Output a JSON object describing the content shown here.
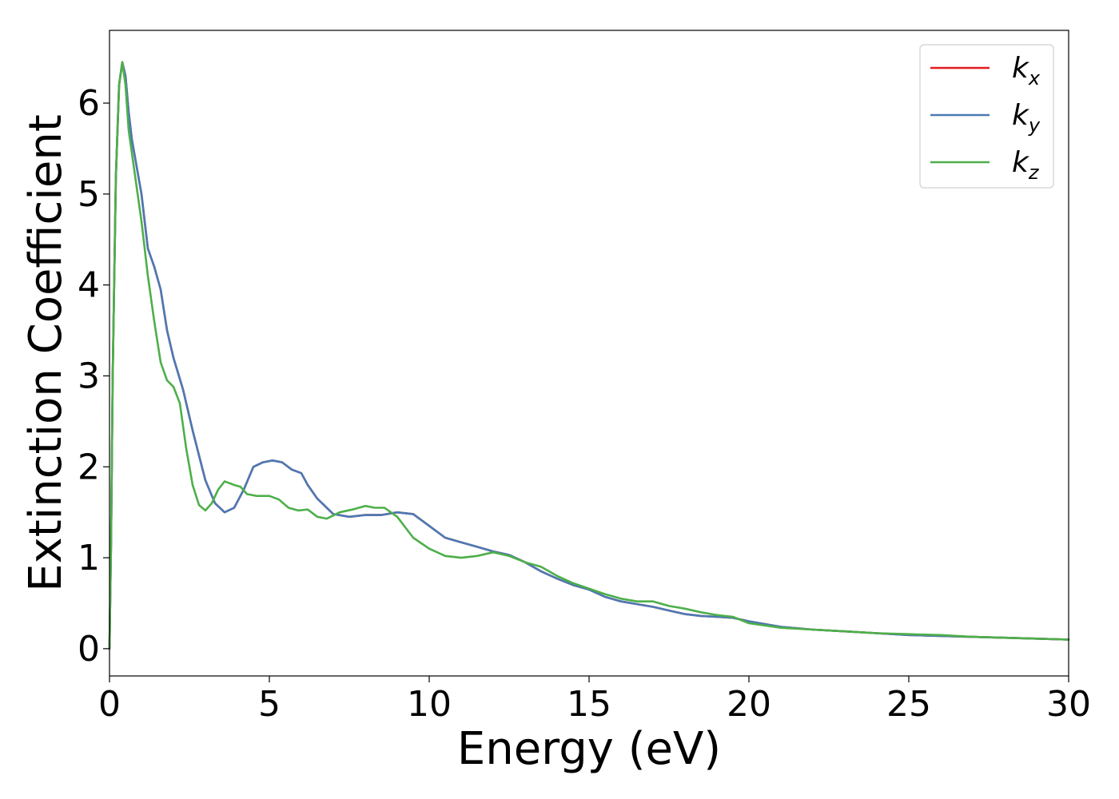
{
  "chart_data": {
    "type": "line",
    "title": "",
    "xlabel": "Energy (eV)",
    "ylabel": "Extinction Coefficient",
    "xlim": [
      0,
      30
    ],
    "ylim": [
      -0.3,
      6.8
    ],
    "xticks": [
      0,
      5,
      10,
      15,
      20,
      25,
      30
    ],
    "xtick_labels": [
      "0",
      "5",
      "10",
      "15",
      "20",
      "25",
      "30"
    ],
    "yticks": [
      0,
      1,
      2,
      3,
      4,
      5,
      6
    ],
    "ytick_labels": [
      "0",
      "1",
      "2",
      "3",
      "4",
      "5",
      "6"
    ],
    "grid": false,
    "legend_position": "top-right",
    "series": [
      {
        "name": "k",
        "subscript": "x",
        "color": "#e41a1c",
        "x": [
          0,
          0.05,
          0.1,
          0.2,
          0.3,
          0.4,
          0.5,
          0.6,
          0.7,
          0.8,
          1.0,
          1.2,
          1.4,
          1.6,
          1.8,
          2.0,
          2.3,
          2.6,
          3.0,
          3.3,
          3.6,
          3.9,
          4.2,
          4.5,
          4.8,
          5.1,
          5.4,
          5.7,
          6.0,
          6.2,
          6.5,
          7.0,
          7.5,
          8.0,
          8.5,
          9.0,
          9.5,
          10.0,
          10.5,
          11.0,
          11.5,
          12.0,
          12.5,
          13.0,
          13.5,
          14.0,
          14.5,
          15.0,
          15.5,
          16.0,
          16.5,
          17.0,
          17.5,
          18.0,
          18.5,
          19.0,
          19.5,
          20.0,
          21.0,
          22.0,
          23.0,
          24.0,
          25.0,
          26.0,
          27.0,
          28.0,
          29.0,
          30.0
        ],
        "y": [
          0,
          1.2,
          3.0,
          5.2,
          6.2,
          6.45,
          6.3,
          5.9,
          5.6,
          5.4,
          5.0,
          4.4,
          4.2,
          3.95,
          3.5,
          3.2,
          2.85,
          2.4,
          1.85,
          1.6,
          1.5,
          1.55,
          1.75,
          2.0,
          2.05,
          2.07,
          2.05,
          1.97,
          1.93,
          1.8,
          1.65,
          1.48,
          1.45,
          1.47,
          1.47,
          1.5,
          1.48,
          1.35,
          1.22,
          1.17,
          1.12,
          1.07,
          1.03,
          0.95,
          0.85,
          0.77,
          0.7,
          0.65,
          0.57,
          0.52,
          0.49,
          0.46,
          0.42,
          0.38,
          0.36,
          0.35,
          0.34,
          0.3,
          0.24,
          0.21,
          0.19,
          0.17,
          0.15,
          0.14,
          0.13,
          0.12,
          0.11,
          0.1
        ]
      },
      {
        "name": "k",
        "subscript": "y",
        "color": "#4a7ab5",
        "x": [
          0,
          0.05,
          0.1,
          0.2,
          0.3,
          0.4,
          0.5,
          0.6,
          0.7,
          0.8,
          1.0,
          1.2,
          1.4,
          1.6,
          1.8,
          2.0,
          2.3,
          2.6,
          3.0,
          3.3,
          3.6,
          3.9,
          4.2,
          4.5,
          4.8,
          5.1,
          5.4,
          5.7,
          6.0,
          6.2,
          6.5,
          7.0,
          7.5,
          8.0,
          8.5,
          9.0,
          9.5,
          10.0,
          10.5,
          11.0,
          11.5,
          12.0,
          12.5,
          13.0,
          13.5,
          14.0,
          14.5,
          15.0,
          15.5,
          16.0,
          16.5,
          17.0,
          17.5,
          18.0,
          18.5,
          19.0,
          19.5,
          20.0,
          21.0,
          22.0,
          23.0,
          24.0,
          25.0,
          26.0,
          27.0,
          28.0,
          29.0,
          30.0
        ],
        "y": [
          0,
          1.2,
          3.0,
          5.2,
          6.2,
          6.45,
          6.3,
          5.9,
          5.6,
          5.4,
          5.0,
          4.4,
          4.2,
          3.95,
          3.5,
          3.2,
          2.85,
          2.4,
          1.85,
          1.6,
          1.5,
          1.55,
          1.75,
          2.0,
          2.05,
          2.07,
          2.05,
          1.97,
          1.93,
          1.8,
          1.65,
          1.48,
          1.45,
          1.47,
          1.47,
          1.5,
          1.48,
          1.35,
          1.22,
          1.17,
          1.12,
          1.07,
          1.03,
          0.95,
          0.85,
          0.77,
          0.7,
          0.65,
          0.57,
          0.52,
          0.49,
          0.46,
          0.42,
          0.38,
          0.36,
          0.35,
          0.34,
          0.3,
          0.24,
          0.21,
          0.19,
          0.17,
          0.15,
          0.14,
          0.13,
          0.12,
          0.11,
          0.1
        ]
      },
      {
        "name": "k",
        "subscript": "z",
        "color": "#4daf4a",
        "x": [
          0,
          0.05,
          0.1,
          0.2,
          0.3,
          0.4,
          0.5,
          0.6,
          0.7,
          0.8,
          1.0,
          1.2,
          1.4,
          1.6,
          1.8,
          2.0,
          2.2,
          2.4,
          2.6,
          2.8,
          3.0,
          3.2,
          3.4,
          3.6,
          3.75,
          3.9,
          4.1,
          4.3,
          4.6,
          5.0,
          5.3,
          5.6,
          5.9,
          6.2,
          6.5,
          6.8,
          7.2,
          7.6,
          8.0,
          8.3,
          8.6,
          9.0,
          9.5,
          10.0,
          10.5,
          11.0,
          11.5,
          12.0,
          12.5,
          13.0,
          13.5,
          14.0,
          14.5,
          15.0,
          15.5,
          16.0,
          16.5,
          17.0,
          17.5,
          18.0,
          18.5,
          19.0,
          19.5,
          20.0,
          21.0,
          22.0,
          23.0,
          24.0,
          25.0,
          26.0,
          27.0,
          28.0,
          29.0,
          30.0
        ],
        "y": [
          0,
          1.2,
          3.0,
          5.2,
          6.2,
          6.45,
          6.2,
          5.7,
          5.45,
          5.2,
          4.7,
          4.1,
          3.6,
          3.15,
          2.95,
          2.88,
          2.7,
          2.2,
          1.8,
          1.58,
          1.52,
          1.6,
          1.75,
          1.84,
          1.82,
          1.8,
          1.78,
          1.7,
          1.68,
          1.68,
          1.64,
          1.55,
          1.52,
          1.53,
          1.45,
          1.43,
          1.5,
          1.53,
          1.57,
          1.55,
          1.55,
          1.45,
          1.22,
          1.1,
          1.02,
          1.0,
          1.02,
          1.06,
          1.02,
          0.95,
          0.9,
          0.8,
          0.72,
          0.66,
          0.6,
          0.55,
          0.52,
          0.52,
          0.47,
          0.44,
          0.4,
          0.37,
          0.35,
          0.28,
          0.23,
          0.21,
          0.19,
          0.17,
          0.16,
          0.15,
          0.13,
          0.12,
          0.11,
          0.1
        ]
      }
    ]
  }
}
